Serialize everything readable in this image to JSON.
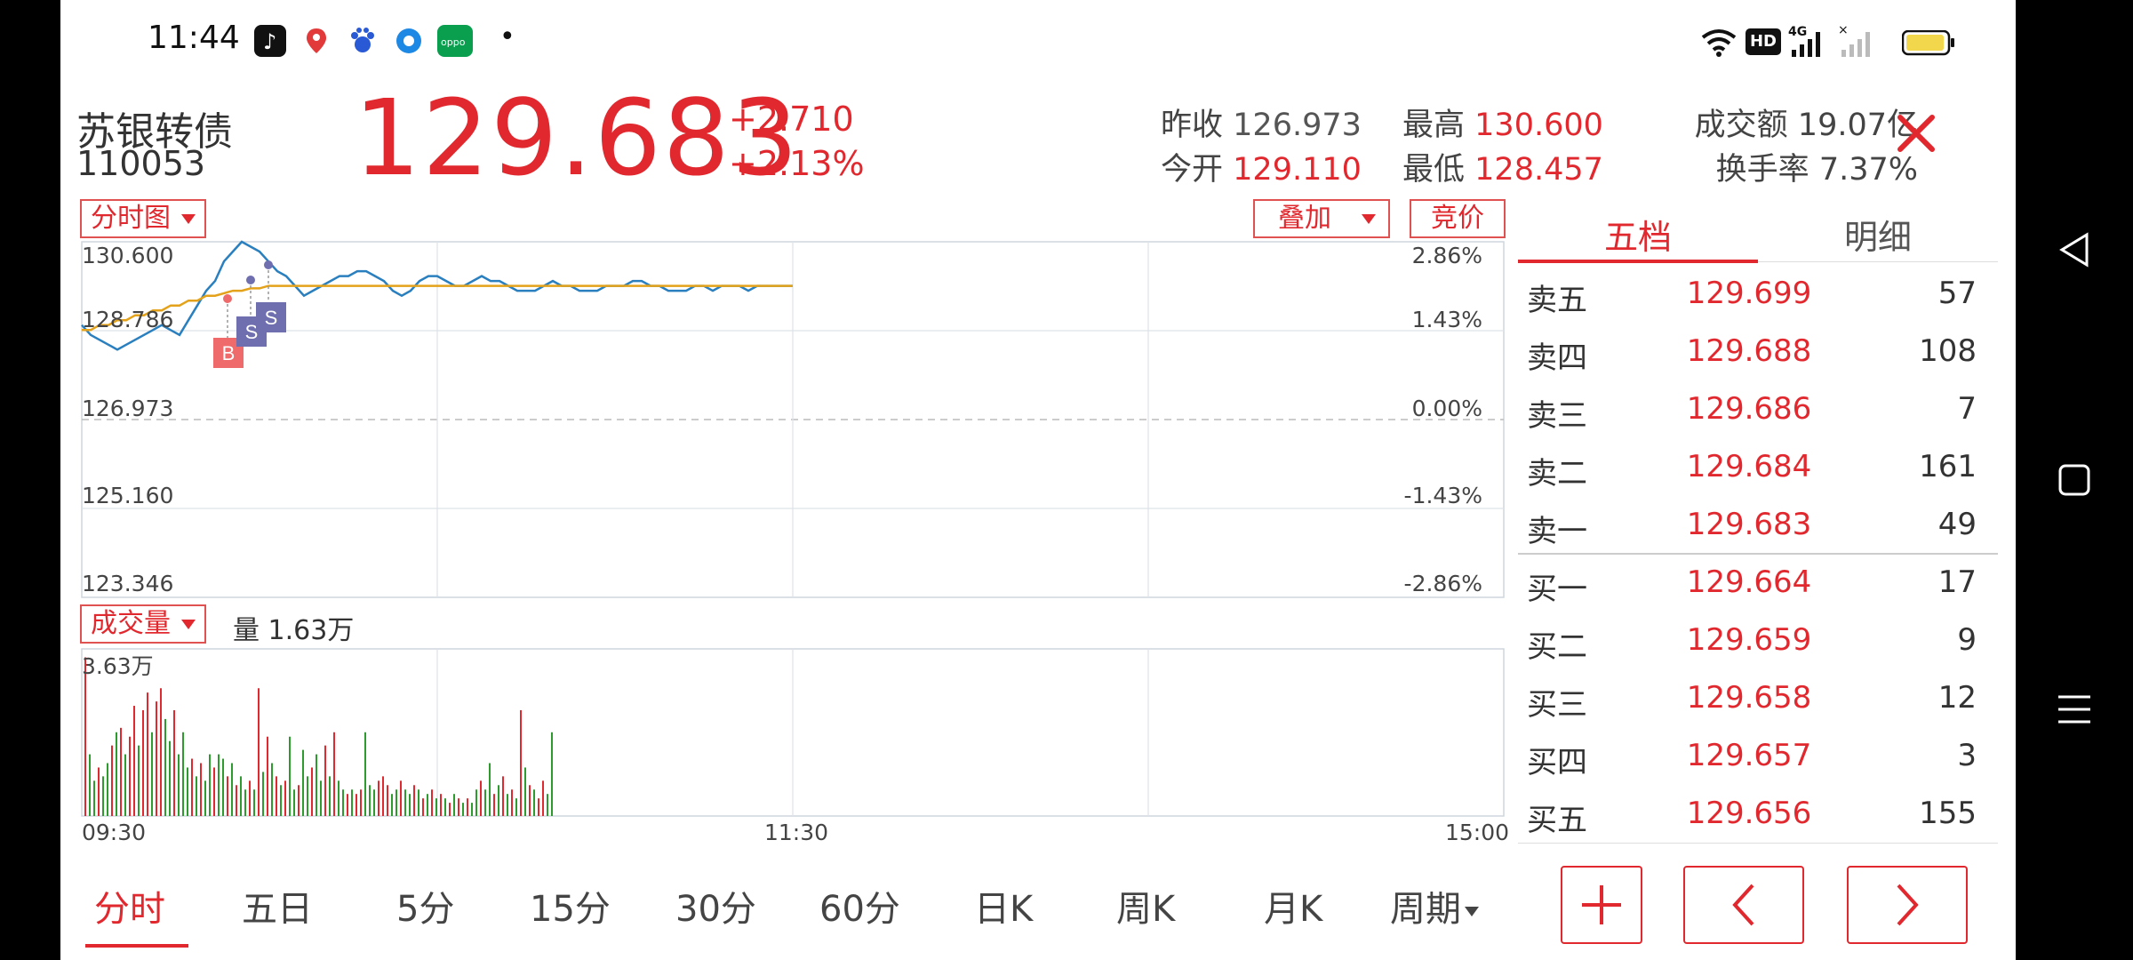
{
  "status_bar": {
    "time": "11:44",
    "network": "4G",
    "hd_badge": "HD"
  },
  "quote": {
    "name": "苏银转债",
    "code": "110053",
    "price": "129.683",
    "change": "+2.710",
    "change_pct": "+2.13%",
    "prev_close_label": "昨收",
    "prev_close": "126.973",
    "open_label": "今开",
    "open": "129.110",
    "high_label": "最高",
    "high": "130.600",
    "low_label": "最低",
    "low": "128.457",
    "turnover_label": "成交额",
    "turnover": "19.07亿",
    "turnover_rate_label": "换手率",
    "turnover_rate": "7.37%"
  },
  "controls": {
    "chart_type": "分时图",
    "overlay": "叠加",
    "auction": "竞价",
    "volume_selector": "成交量",
    "volume_label": "量 1.63万"
  },
  "chart_data": {
    "type": "line",
    "y_ticks_left": [
      "130.600",
      "128.786",
      "126.973",
      "125.160",
      "123.346"
    ],
    "y_ticks_right": [
      "2.86%",
      "1.43%",
      "0.00%",
      "-1.43%",
      "-2.86%"
    ],
    "ylim": [
      123.346,
      130.6
    ],
    "x_ticks": [
      "09:30",
      "11:30",
      "15:00"
    ],
    "series": [
      {
        "values": [
          128.9,
          128.7,
          128.6,
          128.5,
          128.4,
          128.5,
          128.6,
          128.7,
          128.8,
          128.9,
          128.8,
          128.7,
          129.0,
          129.3,
          129.6,
          129.8,
          130.2,
          130.4,
          130.6,
          130.5,
          130.4,
          130.2,
          130.0,
          129.9,
          129.7,
          129.5,
          129.6,
          129.7,
          129.8,
          129.9,
          129.9,
          130.0,
          130.0,
          129.9,
          129.8,
          129.6,
          129.5,
          129.6,
          129.8,
          129.9,
          129.9,
          129.8,
          129.7,
          129.7,
          129.8,
          129.9,
          129.8,
          129.8,
          129.7,
          129.6,
          129.6,
          129.6,
          129.7,
          129.8,
          129.7,
          129.7,
          129.6,
          129.6,
          129.6,
          129.7,
          129.7,
          129.7,
          129.8,
          129.8,
          129.7,
          129.7,
          129.6,
          129.6,
          129.6,
          129.7,
          129.7,
          129.6,
          129.7,
          129.7,
          129.7,
          129.6,
          129.7,
          129.7,
          129.7,
          129.7,
          129.7
        ]
      },
      {
        "values": [
          128.8,
          128.8,
          128.9,
          128.9,
          129.0,
          129.0,
          129.1,
          129.1,
          129.2,
          129.2,
          129.3,
          129.3,
          129.4,
          129.4,
          129.5,
          129.5,
          129.55,
          129.6,
          129.6,
          129.65,
          129.65,
          129.7,
          129.7,
          129.7,
          129.7,
          129.7,
          129.7,
          129.7,
          129.7,
          129.7,
          129.7,
          129.7,
          129.7,
          129.7,
          129.7,
          129.7,
          129.7,
          129.7,
          129.7,
          129.7,
          129.7,
          129.7,
          129.7,
          129.7,
          129.7,
          129.7,
          129.7,
          129.7,
          129.7,
          129.7,
          129.7,
          129.7,
          129.7,
          129.7,
          129.7,
          129.7,
          129.7,
          129.7,
          129.7,
          129.7,
          129.7,
          129.7,
          129.7,
          129.7,
          129.7,
          129.7,
          129.7,
          129.7,
          129.7,
          129.7,
          129.7,
          129.7,
          129.7,
          129.7,
          129.7,
          129.7,
          129.7,
          129.7,
          129.7,
          129.7,
          129.7
        ]
      }
    ],
    "markers": [
      "B",
      "S",
      "S"
    ],
    "volume": {
      "max_label": "3.63万",
      "bars": [
        [
          3.6,
          1
        ],
        [
          1.4,
          0
        ],
        [
          0.8,
          0
        ],
        [
          1.1,
          1
        ],
        [
          0.9,
          0
        ],
        [
          1.2,
          0
        ],
        [
          1.6,
          1
        ],
        [
          1.9,
          0
        ],
        [
          2.0,
          1
        ],
        [
          1.4,
          0
        ],
        [
          1.8,
          1
        ],
        [
          2.5,
          1
        ],
        [
          1.6,
          0
        ],
        [
          2.4,
          1
        ],
        [
          2.8,
          1
        ],
        [
          1.9,
          0
        ],
        [
          2.6,
          1
        ],
        [
          2.9,
          1
        ],
        [
          2.2,
          0
        ],
        [
          1.7,
          0
        ],
        [
          2.4,
          1
        ],
        [
          1.4,
          0
        ],
        [
          1.9,
          0
        ],
        [
          1.1,
          0
        ],
        [
          1.3,
          1
        ],
        [
          0.9,
          0
        ],
        [
          1.2,
          1
        ],
        [
          0.8,
          0
        ],
        [
          1.4,
          0
        ],
        [
          1.1,
          1
        ],
        [
          1.4,
          0
        ],
        [
          1.3,
          0
        ],
        [
          0.9,
          1
        ],
        [
          1.2,
          0
        ],
        [
          0.7,
          1
        ],
        [
          0.9,
          0
        ],
        [
          0.6,
          0
        ],
        [
          0.8,
          1
        ],
        [
          0.6,
          0
        ],
        [
          2.9,
          1
        ],
        [
          1.0,
          0
        ],
        [
          1.8,
          1
        ],
        [
          1.2,
          0
        ],
        [
          0.9,
          1
        ],
        [
          0.7,
          0
        ],
        [
          0.8,
          1
        ],
        [
          1.8,
          0
        ],
        [
          0.6,
          0
        ],
        [
          0.7,
          1
        ],
        [
          1.5,
          0
        ],
        [
          0.9,
          0
        ],
        [
          1.1,
          1
        ],
        [
          1.4,
          0
        ],
        [
          0.8,
          0
        ],
        [
          1.6,
          1
        ],
        [
          0.9,
          0
        ],
        [
          1.9,
          1
        ],
        [
          0.8,
          0
        ],
        [
          0.6,
          0
        ],
        [
          0.5,
          1
        ],
        [
          0.6,
          0
        ],
        [
          0.5,
          1
        ],
        [
          0.6,
          1
        ],
        [
          1.9,
          0
        ],
        [
          0.7,
          0
        ],
        [
          0.6,
          0
        ],
        [
          0.8,
          1
        ],
        [
          0.9,
          1
        ],
        [
          0.7,
          1
        ],
        [
          0.5,
          0
        ],
        [
          0.6,
          0
        ],
        [
          0.8,
          1
        ],
        [
          0.6,
          0
        ],
        [
          0.5,
          0
        ],
        [
          0.7,
          1
        ],
        [
          0.6,
          0
        ],
        [
          0.4,
          1
        ],
        [
          0.5,
          0
        ],
        [
          0.6,
          1
        ],
        [
          0.4,
          0
        ],
        [
          0.5,
          1
        ],
        [
          0.4,
          0
        ],
        [
          0.3,
          1
        ],
        [
          0.5,
          0
        ],
        [
          0.4,
          1
        ],
        [
          0.3,
          0
        ],
        [
          0.4,
          1
        ],
        [
          0.3,
          0
        ],
        [
          0.6,
          0
        ],
        [
          0.8,
          1
        ],
        [
          0.6,
          0
        ],
        [
          1.2,
          0
        ],
        [
          0.5,
          1
        ],
        [
          0.7,
          0
        ],
        [
          0.9,
          1
        ],
        [
          0.5,
          0
        ],
        [
          0.6,
          1
        ],
        [
          0.4,
          0
        ],
        [
          2.4,
          1
        ],
        [
          1.1,
          0
        ],
        [
          0.7,
          1
        ],
        [
          0.6,
          0
        ],
        [
          0.4,
          1
        ],
        [
          0.8,
          1
        ],
        [
          0.5,
          0
        ],
        [
          1.9,
          0
        ]
      ]
    }
  },
  "orderbook": {
    "tabs": [
      "五档",
      "明细"
    ],
    "asks": [
      {
        "label": "卖五",
        "price": "129.699",
        "vol": "57"
      },
      {
        "label": "卖四",
        "price": "129.688",
        "vol": "108"
      },
      {
        "label": "卖三",
        "price": "129.686",
        "vol": "7"
      },
      {
        "label": "卖二",
        "price": "129.684",
        "vol": "161"
      },
      {
        "label": "卖一",
        "price": "129.683",
        "vol": "49"
      }
    ],
    "bids": [
      {
        "label": "买一",
        "price": "129.664",
        "vol": "17"
      },
      {
        "label": "买二",
        "price": "129.659",
        "vol": "9"
      },
      {
        "label": "买三",
        "price": "129.658",
        "vol": "12"
      },
      {
        "label": "买四",
        "price": "129.657",
        "vol": "3"
      },
      {
        "label": "买五",
        "price": "129.656",
        "vol": "155"
      }
    ]
  },
  "periods": [
    "分时",
    "五日",
    "5分",
    "15分",
    "30分",
    "60分",
    "日K",
    "周K",
    "月K",
    "周期"
  ],
  "colors": {
    "up": "#e0282e",
    "down": "#2e9b2e",
    "price_line": "#2a7fbf",
    "avg_line": "#e3a21a"
  }
}
